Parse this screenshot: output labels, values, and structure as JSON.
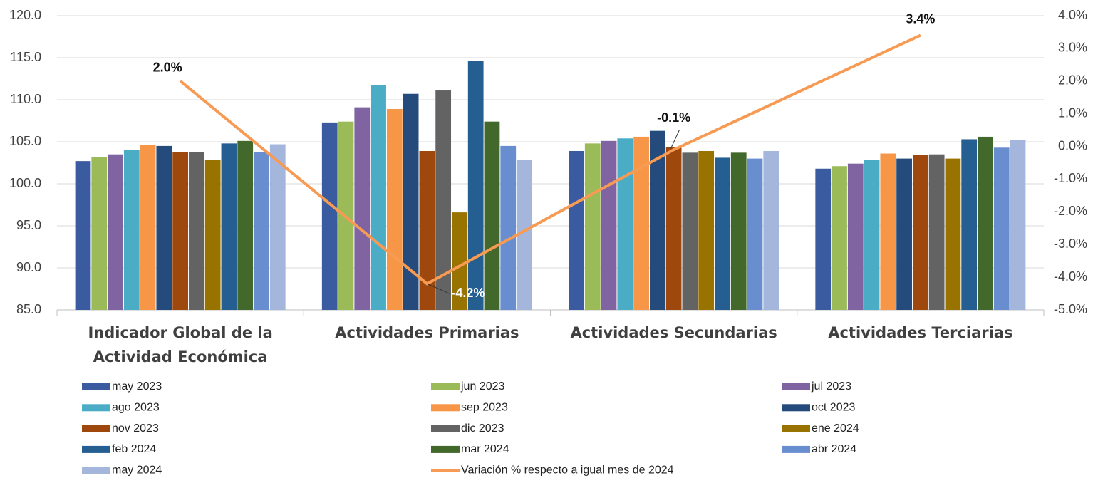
{
  "chart_data": {
    "type": "bar",
    "categories": [
      "Indicador Global de la Actividad Económica",
      "Actividades Primarias",
      "Actividades Secundarias",
      "Actividades Terciarias"
    ],
    "ylim": [
      85,
      120
    ],
    "yticks": [
      {
        "value": 85,
        "label": "85.0"
      },
      {
        "value": 90,
        "label": "90.0"
      },
      {
        "value": 95,
        "label": "95.0"
      },
      {
        "value": 100,
        "label": "100.0"
      },
      {
        "value": 105,
        "label": "105.0"
      },
      {
        "value": 110,
        "label": "110.0"
      },
      {
        "value": 115,
        "label": "115.0"
      },
      {
        "value": 120,
        "label": "120.0"
      }
    ],
    "y2lim": [
      -5,
      4
    ],
    "y2ticks": [
      {
        "value": -5,
        "label": "-5.0%"
      },
      {
        "value": -4,
        "label": "-4.0%"
      },
      {
        "value": -3,
        "label": "-3.0%"
      },
      {
        "value": -2,
        "label": "-2.0%"
      },
      {
        "value": -1,
        "label": "-1.0%"
      },
      {
        "value": 0,
        "label": "0.0%"
      },
      {
        "value": 1,
        "label": "1.0%"
      },
      {
        "value": 2,
        "label": "2.0%"
      },
      {
        "value": 3,
        "label": "3.0%"
      },
      {
        "value": 4,
        "label": "4.0%"
      }
    ],
    "grid": true,
    "legend": "bottom",
    "series": [
      {
        "name": "may 2023",
        "color": "#3a5ba0",
        "values": [
          102.7,
          107.3,
          103.9,
          101.8
        ]
      },
      {
        "name": "jun 2023",
        "color": "#9bbb59",
        "values": [
          103.2,
          107.4,
          104.8,
          102.1
        ]
      },
      {
        "name": "jul 2023",
        "color": "#8064a2",
        "values": [
          103.5,
          109.1,
          105.1,
          102.4
        ]
      },
      {
        "name": "ago 2023",
        "color": "#4bacc6",
        "values": [
          104.0,
          111.7,
          105.4,
          102.8
        ]
      },
      {
        "name": "sep 2023",
        "color": "#f79646",
        "values": [
          104.6,
          108.9,
          105.6,
          103.6
        ]
      },
      {
        "name": "oct 2023",
        "color": "#254a7c",
        "values": [
          104.5,
          110.7,
          106.3,
          103.0
        ]
      },
      {
        "name": "nov 2023",
        "color": "#9e480e",
        "values": [
          103.8,
          103.9,
          104.4,
          103.4
        ]
      },
      {
        "name": "dic 2023",
        "color": "#636363",
        "values": [
          103.8,
          111.1,
          103.7,
          103.5
        ]
      },
      {
        "name": "ene 2024",
        "color": "#997300",
        "values": [
          102.8,
          96.6,
          103.9,
          103.0
        ]
      },
      {
        "name": "feb 2024",
        "color": "#255e91",
        "values": [
          104.8,
          114.6,
          103.1,
          105.3
        ]
      },
      {
        "name": "mar 2024",
        "color": "#43682b",
        "values": [
          105.1,
          107.4,
          103.7,
          105.6
        ]
      },
      {
        "name": "abr 2024",
        "color": "#698ed0",
        "values": [
          103.8,
          104.5,
          103.0,
          104.3
        ]
      },
      {
        "name": "may 2024",
        "color": "#a5b6dc",
        "values": [
          104.7,
          102.8,
          103.9,
          105.2
        ]
      },
      {
        "name": "Variación % respecto a igual mes de 2024",
        "color": "#f79b54",
        "type": "line",
        "axis": "y2",
        "values": [
          2.0,
          -4.2,
          -0.1,
          3.4
        ],
        "value_labels": [
          "2.0%",
          "-4.2%",
          "-0.1%",
          "3.4%"
        ]
      }
    ]
  }
}
